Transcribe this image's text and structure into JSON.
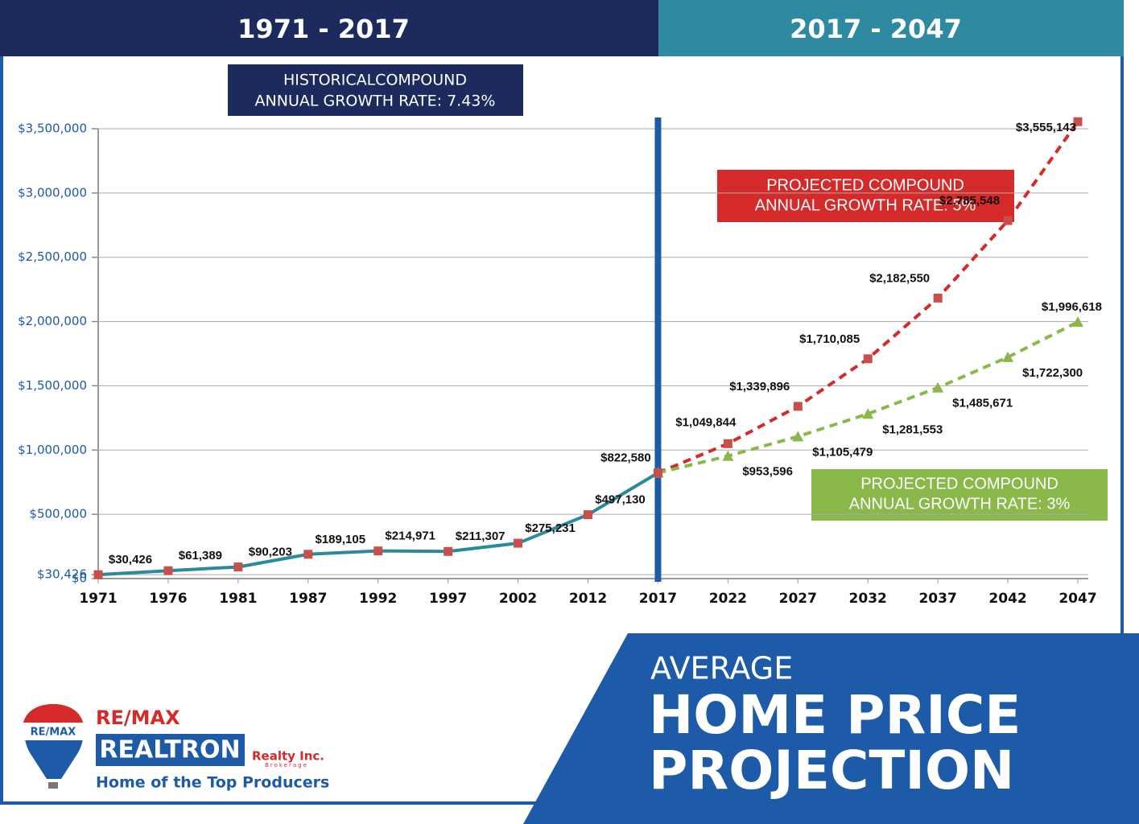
{
  "header": {
    "left": "1971 - 2017",
    "right": "2017 - 2047"
  },
  "chart_data": {
    "type": "line",
    "categories": [
      "1971",
      "1976",
      "1981",
      "1987",
      "1992",
      "1997",
      "2002",
      "2012",
      "2017",
      "2022",
      "2027",
      "2032",
      "2037",
      "2042",
      "2047"
    ],
    "ylim": [
      0,
      3500000
    ],
    "yticks": [
      {
        "value": 0,
        "label": "$0"
      },
      {
        "value": 30426,
        "label": "$30,426"
      },
      {
        "value": 500000,
        "label": "$500,000"
      },
      {
        "value": 1000000,
        "label": "$1,000,000"
      },
      {
        "value": 1500000,
        "label": "$1,500,000"
      },
      {
        "value": 2000000,
        "label": "$2,000,000"
      },
      {
        "value": 2500000,
        "label": "$2,500,000"
      },
      {
        "value": 3000000,
        "label": "$3,000,000"
      },
      {
        "value": 3500000,
        "label": "$3,500,000"
      }
    ],
    "grid": true,
    "divider_category": "2017",
    "series": [
      {
        "name": "Historical",
        "color": "#2a8a9c",
        "marker": "square",
        "marker_color": "#c8504a",
        "dashed": false,
        "values": [
          30426,
          61389,
          90203,
          189105,
          214971,
          211307,
          275231,
          497130,
          822580,
          null,
          null,
          null,
          null,
          null,
          null
        ],
        "value_labels": [
          "$30,426",
          "$61,389",
          "$90,203",
          "$189,105",
          "$214,971",
          "$211,307",
          "$275,231",
          "$497,130",
          "$822,580",
          null,
          null,
          null,
          null,
          null,
          null
        ]
      },
      {
        "name": "Projected 5%",
        "color": "#d42a2a",
        "marker": "square",
        "marker_color": "#c8504a",
        "dashed": true,
        "values": [
          null,
          null,
          null,
          null,
          null,
          null,
          null,
          null,
          822580,
          1049844,
          1339896,
          1710085,
          2182550,
          2785548,
          3555143
        ],
        "value_labels": [
          null,
          null,
          null,
          null,
          null,
          null,
          null,
          null,
          null,
          "$1,049,844",
          "$1,339,896",
          "$1,710,085",
          "$2,182,550",
          "$2,785,548",
          "$3,555,143"
        ]
      },
      {
        "name": "Projected 3%",
        "color": "#8ab84a",
        "marker": "triangle",
        "marker_color": "#8ab84a",
        "dashed": true,
        "values": [
          null,
          null,
          null,
          null,
          null,
          null,
          null,
          null,
          822580,
          953596,
          1105479,
          1281553,
          1485671,
          1722300,
          1996618
        ],
        "value_labels": [
          null,
          null,
          null,
          null,
          null,
          null,
          null,
          null,
          null,
          "$953,596",
          "$1,105,479",
          "$1,281,553",
          "$1,485,671",
          "$1,722,300",
          "$1,996,618"
        ]
      }
    ],
    "annotations": [
      {
        "lines": [
          "HISTORICALCOMPOUND",
          "ANNUAL GROWTH RATE: 7.43%"
        ]
      },
      {
        "lines": [
          "PROJECTED COMPOUND",
          "ANNUAL GROWTH RATE: 5%"
        ]
      },
      {
        "lines": [
          "PROJECTED COMPOUND",
          "ANNUAL GROWTH RATE: 3%"
        ]
      }
    ]
  },
  "banner": {
    "line1": "AVERAGE",
    "line2": "HOME PRICE",
    "line3": "PROJECTION"
  },
  "logo": {
    "brand": "RE/MAX",
    "balloon": "RE/MAX",
    "name": "REALTRON",
    "suffix": "Realty Inc.",
    "sub": "Brokerage",
    "tagline": "Home of the Top Producers"
  }
}
